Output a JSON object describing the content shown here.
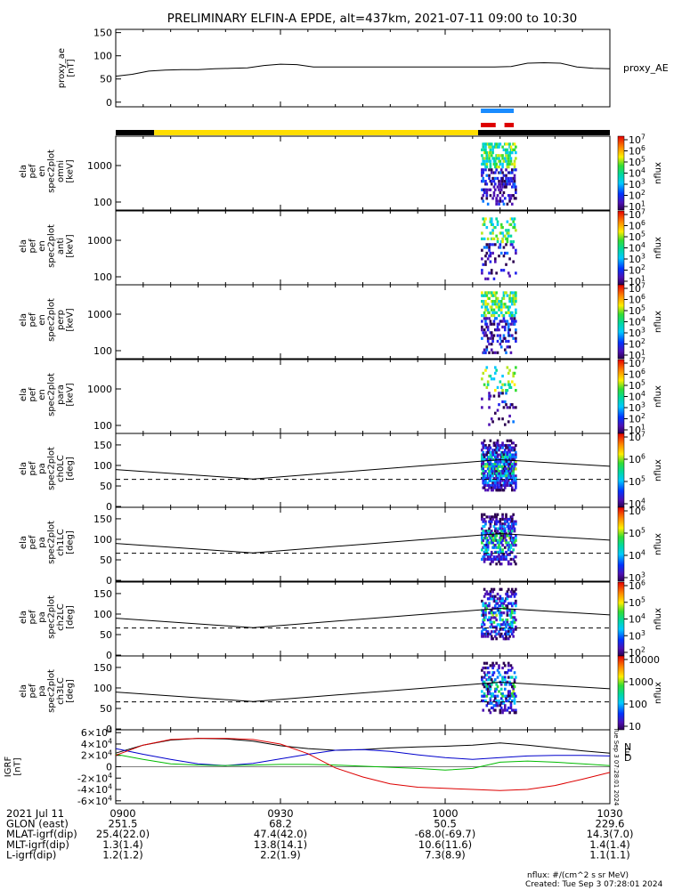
{
  "chart_data": {
    "type": "spectrogram_stack",
    "title": "PRELIMINARY ELFIN-A EPDE, alt=437km, 2021-07-11 09:00 to 10:30",
    "time_ticks": [
      "0900",
      "0930",
      "1000",
      "1030"
    ],
    "time_range_min": [
      0,
      90
    ],
    "proxy_ae": {
      "ylabel": "proxy_ae [nT]",
      "legend": "proxy_AE",
      "ylim": [
        0,
        150
      ],
      "yticks": [
        "150",
        "100",
        "50",
        "0"
      ],
      "x": [
        0,
        3,
        6,
        9,
        12,
        15,
        18,
        21,
        24,
        27,
        30,
        33,
        36,
        39,
        42,
        45,
        48,
        51,
        54,
        57,
        60,
        63,
        66,
        69,
        72,
        75,
        78,
        81,
        84,
        87,
        90
      ],
      "values": [
        56,
        60,
        67,
        69,
        70,
        70,
        72,
        73,
        74,
        79,
        82,
        81,
        76,
        76,
        76,
        76,
        76,
        76,
        76,
        76,
        76,
        76,
        76,
        76,
        77,
        84,
        85,
        84,
        76,
        73,
        72
      ]
    },
    "science_zone_bars": {
      "blue": [
        [
          66.5,
          72.5
        ]
      ],
      "red": [
        [
          66.5,
          69.2
        ],
        [
          70.8,
          72.5
        ]
      ]
    },
    "sunlight_bar": {
      "yellow": [
        [
          7,
          66
        ]
      ],
      "black": [
        [
          0,
          7
        ],
        [
          66,
          90
        ]
      ]
    },
    "energy_panels": [
      {
        "name": "omni",
        "ylabel": "ela pef en spec2plot omni [keV]",
        "yticks": [
          "1000",
          "100"
        ],
        "cbar_ticks": [
          "10^7",
          "10^6",
          "10^5",
          "10^4",
          "10^3",
          "10^2",
          "10^1"
        ],
        "zlabel": "nflux"
      },
      {
        "name": "anti",
        "ylabel": "ela pef en spec2plot anti [keV]",
        "yticks": [
          "1000",
          "100"
        ],
        "cbar_ticks": [
          "10^7",
          "10^6",
          "10^5",
          "10^4",
          "10^3",
          "10^2",
          "10^1"
        ],
        "zlabel": "nflux"
      },
      {
        "name": "perp",
        "ylabel": "ela pef en spec2plot perp [keV]",
        "yticks": [
          "1000",
          "100"
        ],
        "cbar_ticks": [
          "10^7",
          "10^6",
          "10^5",
          "10^4",
          "10^3",
          "10^2",
          "10^1"
        ],
        "zlabel": "nflux"
      },
      {
        "name": "para",
        "ylabel": "ela pef en spec2plot para [keV]",
        "yticks": [
          "1000",
          "100"
        ],
        "cbar_ticks": [
          "10^7",
          "10^6",
          "10^5",
          "10^4",
          "10^3",
          "10^2",
          "10^1"
        ],
        "zlabel": "nflux"
      }
    ],
    "pa_panels": [
      {
        "name": "ch0LC",
        "ylabel": "ela pef pa spec2plot ch0LC [deg]",
        "yticks": [
          "150",
          "100",
          "50",
          "0"
        ],
        "cbar_ticks": [
          "10^7",
          "10^6",
          "10^5",
          "10^4"
        ],
        "zlabel": "nflux"
      },
      {
        "name": "ch1LC",
        "ylabel": "ela pef pa spec2plot ch1LC [deg]",
        "yticks": [
          "150",
          "100",
          "50",
          "0"
        ],
        "cbar_ticks": [
          "10^6",
          "10^5",
          "10^4",
          "10^3"
        ],
        "zlabel": "nflux"
      },
      {
        "name": "ch2LC",
        "ylabel": "ela pef pa spec2plot ch2LC [deg]",
        "yticks": [
          "150",
          "100",
          "50",
          "0"
        ],
        "cbar_ticks": [
          "10^6",
          "10^5",
          "10^4",
          "10^3",
          "10^2"
        ],
        "zlabel": "nflux"
      },
      {
        "name": "ch3LC",
        "ylabel": "ela pef pa spec2plot ch3LC [deg]",
        "yticks": [
          "150",
          "100",
          "50",
          "0"
        ],
        "cbar_ticks": [
          "10000",
          "1000",
          "100",
          "10"
        ],
        "zlabel": "nflux"
      }
    ],
    "pa_lines": {
      "solid_x": [
        0,
        25,
        70,
        90
      ],
      "solid_y": [
        90,
        67,
        114,
        98
      ],
      "dashed_y": 66
    },
    "igrf": {
      "ylabel": "IGRF [nT]",
      "yticks": [
        "6x10^4",
        "4x10^4",
        "2x10^4",
        "0",
        "-2x10^4",
        "-4x10^4",
        "-6x10^4"
      ],
      "ylim": [
        -65000,
        65000
      ],
      "legend": [
        "N",
        "E",
        "D"
      ],
      "legend_colors": [
        "#0000cc",
        "#009900",
        "#cc0000"
      ],
      "side_text": "Tue Sep 3 07:28:01 2024",
      "x": [
        0,
        5,
        10,
        15,
        20,
        25,
        30,
        35,
        40,
        45,
        50,
        55,
        60,
        65,
        70,
        75,
        80,
        85,
        90
      ],
      "black": [
        24000,
        38000,
        47000,
        50000,
        49000,
        45000,
        37000,
        32000,
        29000,
        30000,
        33000,
        35000,
        36000,
        38000,
        42000,
        38000,
        33000,
        28000,
        24000
      ],
      "blue": [
        32000,
        22000,
        13000,
        5000,
        2000,
        6000,
        14000,
        22000,
        29000,
        30000,
        27000,
        21000,
        16000,
        13000,
        16000,
        19000,
        20000,
        20000,
        19000
      ],
      "green": [
        22000,
        13000,
        5000,
        3000,
        2000,
        3000,
        4000,
        4000,
        3000,
        1000,
        -1000,
        -3000,
        -6000,
        -3000,
        8000,
        10000,
        8000,
        5000,
        2000
      ],
      "red": [
        20000,
        38000,
        48000,
        50000,
        50000,
        48000,
        40000,
        23000,
        -2000,
        -18000,
        -30000,
        -36000,
        -38000,
        -40000,
        -42000,
        -40000,
        -33000,
        -22000,
        -10000
      ]
    },
    "series_colors": {
      "black": "#000000",
      "blue": "#0000cc",
      "green": "#00bb00",
      "red": "#dd0000",
      "yellow": "#ffdd00",
      "bar_blue": "#1a8cff"
    },
    "footer": {
      "rows": [
        {
          "label": "2021 Jul 11",
          "values": [
            "0900",
            "0930",
            "1000",
            "1030"
          ]
        },
        {
          "label": "GLON (east)",
          "values": [
            "251.5",
            "68.2",
            "50.5",
            "229.6"
          ]
        },
        {
          "label": "MLAT-igrf(dip)",
          "values": [
            "25.4(22.0)",
            "47.4(42.0)",
            "-68.0(-69.7)",
            "14.3(7.0)"
          ]
        },
        {
          "label": "MLT-igrf(dip)",
          "values": [
            "1.3(1.4)",
            "13.8(14.1)",
            "10.6(11.6)",
            "1.4(1.4)"
          ]
        },
        {
          "label": "L-igrf(dip)",
          "values": [
            "1.2(1.2)",
            "2.2(1.9)",
            "7.3(8.9)",
            "1.1(1.1)"
          ]
        }
      ],
      "units_note": "nflux: #/(cm^2 s sr MeV)",
      "created": "Created: Tue Sep  3 07:28:01 2024"
    }
  }
}
